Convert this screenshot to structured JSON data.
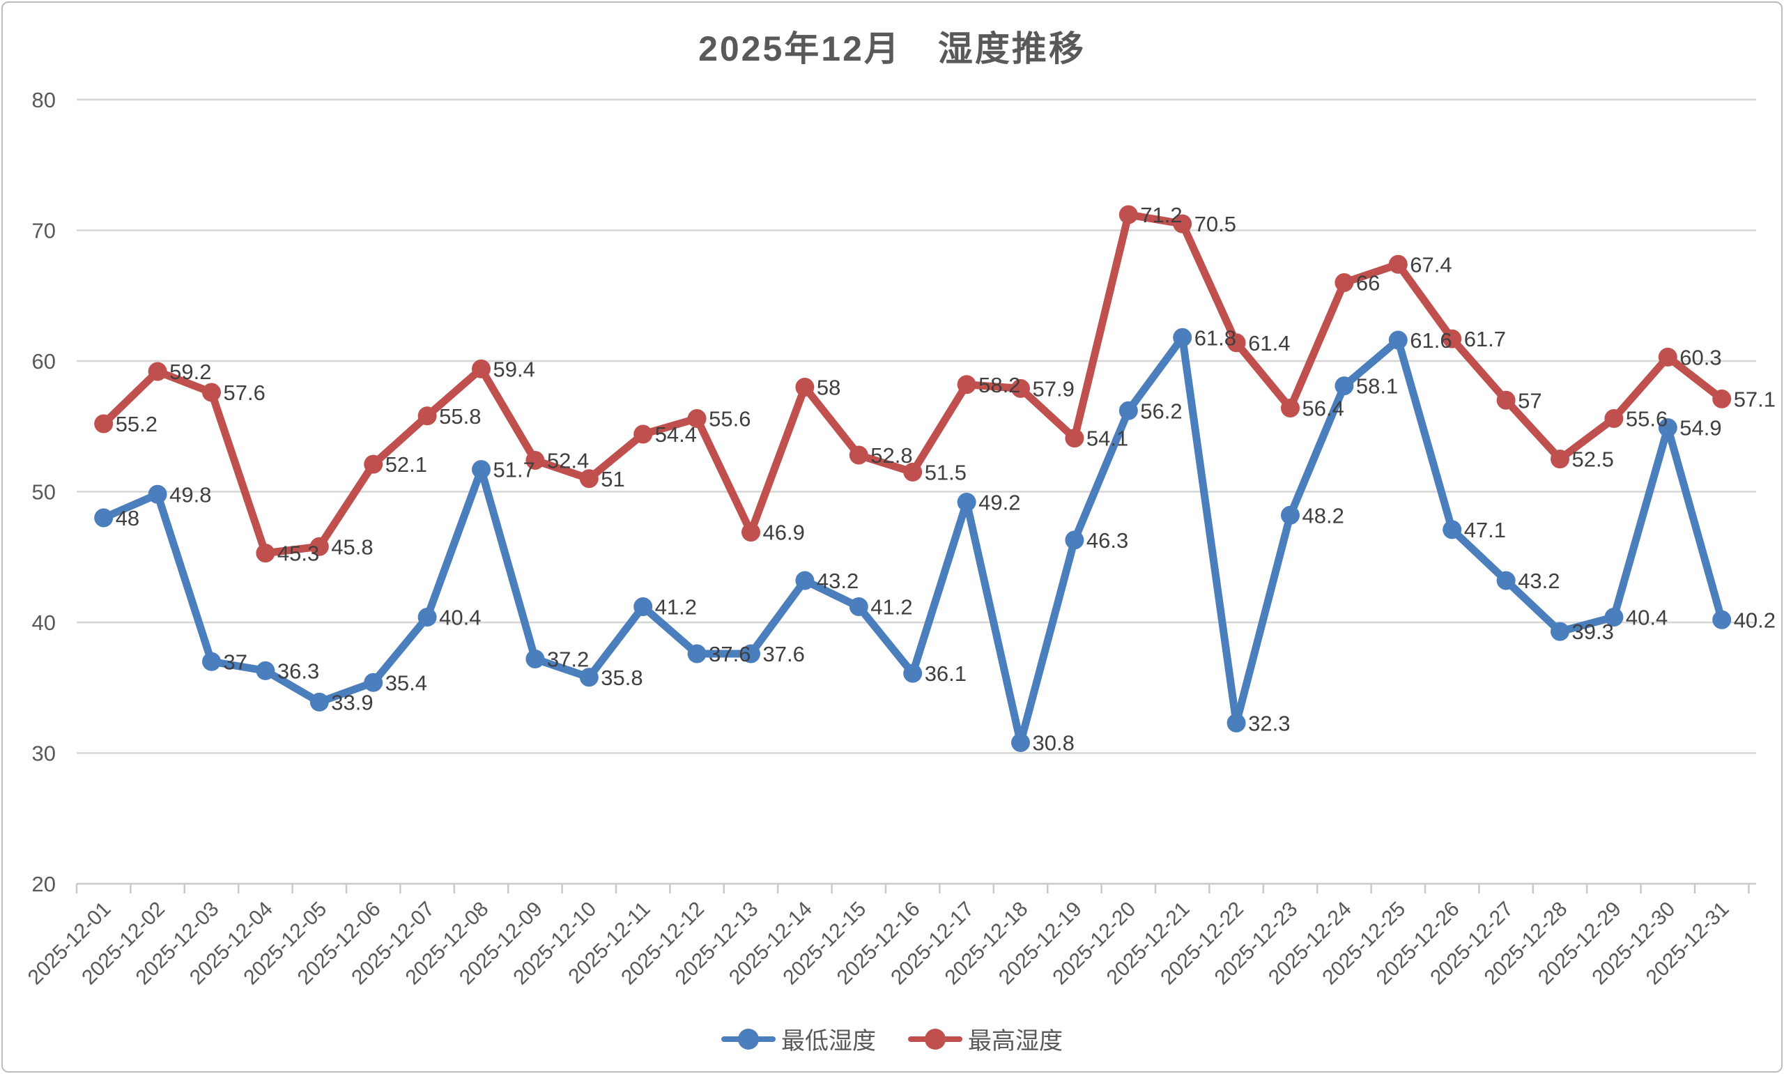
{
  "title": "2025年12月　湿度推移",
  "chart_data": {
    "type": "line",
    "title": "2025年12月　湿度推移",
    "x": [
      "2025-12-01",
      "2025-12-02",
      "2025-12-03",
      "2025-12-04",
      "2025-12-05",
      "2025-12-06",
      "2025-12-07",
      "2025-12-08",
      "2025-12-09",
      "2025-12-10",
      "2025-12-11",
      "2025-12-12",
      "2025-12-13",
      "2025-12-14",
      "2025-12-15",
      "2025-12-16",
      "2025-12-17",
      "2025-12-18",
      "2025-12-19",
      "2025-12-20",
      "2025-12-21",
      "2025-12-22",
      "2025-12-23",
      "2025-12-24",
      "2025-12-25",
      "2025-12-26",
      "2025-12-27",
      "2025-12-28",
      "2025-12-29",
      "2025-12-30",
      "2025-12-31"
    ],
    "series": [
      {
        "name": "最低湿度",
        "color": "#4a7ebc",
        "values": [
          48,
          49.8,
          37,
          36.3,
          33.9,
          35.4,
          40.4,
          51.7,
          37.2,
          35.8,
          41.2,
          37.6,
          37.6,
          43.2,
          41.2,
          36.1,
          49.2,
          30.8,
          46.3,
          56.2,
          61.8,
          32.3,
          48.2,
          58.1,
          61.6,
          47.1,
          43.2,
          39.3,
          40.4,
          54.9,
          40.2
        ]
      },
      {
        "name": "最高湿度",
        "color": "#c0504d",
        "values": [
          55.2,
          59.2,
          57.6,
          45.3,
          45.8,
          52.1,
          55.8,
          59.4,
          52.4,
          51,
          54.4,
          55.6,
          46.9,
          58,
          52.8,
          51.5,
          58.2,
          57.9,
          54.1,
          71.2,
          70.5,
          61.4,
          56.4,
          66,
          67.4,
          61.7,
          57,
          52.5,
          55.6,
          60.3,
          57.1
        ]
      }
    ],
    "ylim": [
      20,
      80
    ],
    "yticks": [
      20,
      30,
      40,
      50,
      60,
      70,
      80
    ],
    "grid": "horizontal",
    "gridline_color": "#d6d6d6",
    "axis_color": "#c9c9c9",
    "tick_label_color": "#595959",
    "data_label_color": "#3f3f3f",
    "data_labels": true,
    "legend_position": "bottom",
    "x_label_rotation": -45
  }
}
